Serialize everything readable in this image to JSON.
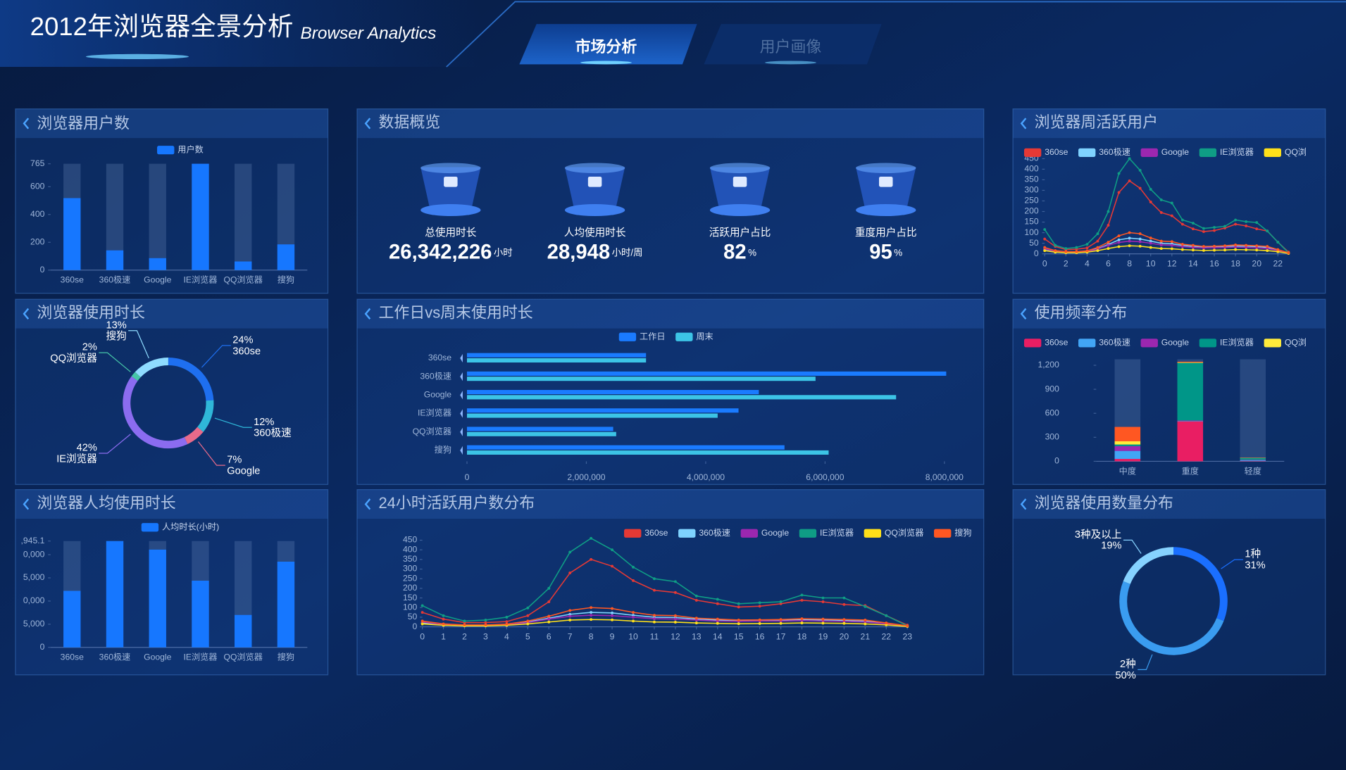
{
  "header": {
    "title": "2012年浏览器全景分析",
    "subtitle": "Browser Analytics"
  },
  "tabs": [
    "市场分析",
    "用户画像"
  ],
  "overview": {
    "title": "数据概览",
    "items": [
      {
        "label": "总使用时长",
        "value": "26,342,226",
        "unit": "小时"
      },
      {
        "label": "人均使用时长",
        "value": "28,948",
        "unit": "小时/周"
      },
      {
        "label": "活跃用户占比",
        "value": "82",
        "unit": "%"
      },
      {
        "label": "重度用户占比",
        "value": "95",
        "unit": "%"
      }
    ]
  },
  "chart_data": [
    {
      "type": "bar",
      "title": "浏览器用户数",
      "categories": [
        "360se",
        "360极速",
        "Google",
        "IE浏览器",
        "QQ浏览器",
        "搜狗"
      ],
      "series": [
        {
          "name": "用户数",
          "color": "#1677ff",
          "values": [
            518,
            142,
            86,
            765,
            62,
            185
          ]
        }
      ],
      "ylim": [
        0,
        765
      ],
      "yticks": [
        0,
        200,
        400,
        600,
        765
      ]
    },
    {
      "type": "pie",
      "title": "浏览器使用时长",
      "categories": [
        "360se",
        "360极速",
        "Google",
        "IE浏览器",
        "QQ浏览器",
        "搜狗"
      ],
      "values": [
        24,
        12,
        7,
        42,
        2,
        13
      ],
      "value_labels": [
        "24%",
        "12%",
        "7%",
        "42%",
        "2%",
        "13%"
      ],
      "colors": [
        "#1e6ff0",
        "#2fb7d8",
        "#e86a8a",
        "#8b6cf0",
        "#46c7a8",
        "#8fdcff"
      ]
    },
    {
      "type": "bar",
      "title": "浏览器人均使用时长",
      "categories": [
        "360se",
        "360极速",
        "Google",
        "IE浏览器",
        "QQ浏览器",
        "搜狗"
      ],
      "series": [
        {
          "name": "人均时长(小时)",
          "color": "#1677ff",
          "values": [
            12200,
            22945.1,
            21100,
            14400,
            7000,
            18500
          ]
        }
      ],
      "ylim": [
        0,
        22945.1
      ],
      "yticks": [
        0,
        {
          "value": 5000,
          "label": "5,000"
        },
        {
          "value": 10000,
          "label": "0,000"
        },
        {
          "value": 15000,
          "label": "5,000"
        },
        {
          "value": 20000,
          "label": "0,000"
        },
        {
          "value": 22945.1,
          "label": ",945.1"
        }
      ]
    },
    {
      "type": "barh",
      "title": "工作日vs周末使用时长",
      "categories": [
        "360se",
        "360极速",
        "Google",
        "IE浏览器",
        "QQ浏览器",
        "搜狗"
      ],
      "series": [
        {
          "name": "工作日",
          "color": "#1a7bff",
          "values": [
            3000000,
            8030000,
            4890000,
            4550000,
            2450000,
            5320000
          ]
        },
        {
          "name": "周末",
          "color": "#3cc4e6",
          "values": [
            3000000,
            5840000,
            7190000,
            4200000,
            2500000,
            6060000
          ]
        }
      ],
      "xlim": [
        0,
        8400000
      ],
      "xticks": [
        0,
        {
          "value": 2000000,
          "label": "2,000,000"
        },
        {
          "value": 4000000,
          "label": "4,000,000"
        },
        {
          "value": 6000000,
          "label": "6,000,000"
        },
        {
          "value": 8000000,
          "label": "8,000,000"
        }
      ]
    },
    {
      "type": "line",
      "title": "24小时活跃用户数分布",
      "x": [
        0,
        1,
        2,
        3,
        4,
        5,
        6,
        7,
        8,
        9,
        10,
        11,
        12,
        13,
        14,
        15,
        16,
        17,
        18,
        19,
        20,
        21,
        22,
        23
      ],
      "series": [
        {
          "name": "360se",
          "color": "#e53935",
          "values": [
            75,
            40,
            22,
            22,
            27,
            58,
            130,
            280,
            350,
            315,
            240,
            190,
            178,
            138,
            120,
            103,
            107,
            120,
            138,
            130,
            116,
            110,
            58,
            9
          ]
        },
        {
          "name": "360极速",
          "color": "#7fd3ff",
          "values": [
            20,
            10,
            8,
            8,
            12,
            25,
            45,
            65,
            75,
            72,
            60,
            50,
            48,
            40,
            35,
            32,
            34,
            35,
            38,
            36,
            34,
            30,
            18,
            4
          ]
        },
        {
          "name": "Google",
          "color": "#9c27b0",
          "values": [
            25,
            12,
            8,
            8,
            10,
            22,
            40,
            55,
            60,
            58,
            50,
            42,
            40,
            35,
            30,
            28,
            30,
            30,
            32,
            30,
            28,
            25,
            15,
            3
          ]
        },
        {
          "name": "IE浏览器",
          "color": "#0f9d85",
          "values": [
            110,
            58,
            30,
            35,
            50,
            98,
            200,
            388,
            460,
            400,
            310,
            250,
            235,
            160,
            143,
            120,
            125,
            130,
            165,
            150,
            150,
            105,
            58,
            5
          ]
        },
        {
          "name": "QQ浏览器",
          "color": "#ffe019",
          "values": [
            15,
            8,
            5,
            5,
            8,
            15,
            25,
            35,
            38,
            36,
            30,
            25,
            24,
            20,
            18,
            16,
            17,
            18,
            20,
            19,
            18,
            15,
            10,
            2
          ]
        },
        {
          "name": "搜狗",
          "color": "#ff5722",
          "values": [
            30,
            15,
            10,
            10,
            14,
            30,
            55,
            85,
            100,
            95,
            75,
            60,
            58,
            45,
            40,
            35,
            36,
            38,
            42,
            40,
            38,
            35,
            20,
            5
          ]
        }
      ],
      "xlim": [
        0,
        23
      ],
      "xticks": [
        0,
        1,
        2,
        3,
        4,
        5,
        6,
        7,
        8,
        9,
        10,
        11,
        12,
        13,
        14,
        15,
        16,
        17,
        18,
        19,
        20,
        21,
        22,
        23
      ],
      "ylim": [
        0,
        450
      ],
      "yticks": [
        0,
        50,
        100,
        150,
        200,
        250,
        300,
        350,
        400,
        450
      ]
    },
    {
      "type": "line",
      "title": "浏览器周活跃用户",
      "x": [
        0,
        1,
        2,
        3,
        4,
        5,
        6,
        7,
        8,
        9,
        10,
        11,
        12,
        13,
        14,
        15,
        16,
        17,
        18,
        19,
        20,
        21,
        22,
        23
      ],
      "series": [
        {
          "name": "360se",
          "color": "#e53935",
          "values": [
            70,
            35,
            20,
            22,
            28,
            60,
            135,
            290,
            345,
            310,
            245,
            195,
            180,
            140,
            118,
            105,
            110,
            122,
            140,
            132,
            118,
            108,
            55,
            8
          ]
        },
        {
          "name": "360极速",
          "color": "#7fd3ff",
          "values": [
            22,
            10,
            8,
            8,
            12,
            24,
            44,
            66,
            74,
            70,
            60,
            50,
            47,
            40,
            35,
            32,
            33,
            35,
            37,
            36,
            34,
            30,
            18,
            4
          ]
        },
        {
          "name": "Google",
          "color": "#9c27b0",
          "values": [
            24,
            12,
            8,
            8,
            10,
            22,
            40,
            54,
            60,
            57,
            50,
            42,
            40,
            34,
            30,
            28,
            29,
            30,
            32,
            30,
            28,
            25,
            15,
            3
          ]
        },
        {
          "name": "IE浏览器",
          "color": "#0f9d85",
          "values": [
            115,
            40,
            25,
            30,
            45,
            95,
            200,
            380,
            450,
            395,
            305,
            255,
            240,
            160,
            145,
            120,
            125,
            130,
            160,
            152,
            148,
            108,
            55,
            5
          ]
        },
        {
          "name": "QQ浏",
          "color": "#ffe019",
          "values": [
            15,
            8,
            5,
            5,
            8,
            15,
            25,
            34,
            38,
            36,
            30,
            25,
            24,
            20,
            18,
            16,
            17,
            18,
            20,
            19,
            18,
            15,
            10,
            2
          ]
        },
        {
          "color": "#ff5722",
          "values": [
            30,
            15,
            10,
            10,
            14,
            30,
            55,
            85,
            100,
            95,
            75,
            60,
            58,
            45,
            40,
            35,
            36,
            38,
            42,
            40,
            38,
            35,
            20,
            5
          ]
        }
      ],
      "xlim": [
        0,
        23
      ],
      "xticks": [
        0,
        2,
        4,
        6,
        8,
        10,
        12,
        14,
        16,
        18,
        20,
        22
      ],
      "ylim": [
        0,
        450
      ],
      "yticks": [
        0,
        50,
        100,
        150,
        200,
        250,
        300,
        350,
        400,
        450
      ]
    },
    {
      "type": "bar",
      "stacked": true,
      "title": "使用频率分布",
      "categories": [
        "中度",
        "重度",
        "轻度"
      ],
      "series": [
        {
          "name": "360se",
          "color": "#e91e63",
          "values": [
            30,
            500,
            5
          ]
        },
        {
          "name": "360极速",
          "color": "#42a5f5",
          "values": [
            100,
            5,
            10
          ]
        },
        {
          "name": "Google",
          "color": "#9c27b0",
          "values": [
            60,
            5,
            5
          ]
        },
        {
          "name": "IE浏览器",
          "color": "#009688",
          "values": [
            20,
            720,
            20
          ]
        },
        {
          "name": "QQ浏",
          "color": "#ffeb3b",
          "values": [
            40,
            5,
            3
          ]
        },
        {
          "color": "#ff5722",
          "values": [
            180,
            10,
            2
          ]
        }
      ],
      "ylim": [
        0,
        1200
      ],
      "yticks": [
        0,
        300,
        600,
        900,
        {
          "value": 1200,
          "label": "1,200"
        }
      ]
    },
    {
      "type": "pie",
      "title": "浏览器使用数量分布",
      "categories": [
        "1种",
        "2种",
        "3种及以上"
      ],
      "values": [
        31,
        50,
        19
      ],
      "value_labels": [
        "31%",
        "50%",
        "19%"
      ],
      "colors": [
        "#1a6fff",
        "#3a9cf0",
        "#86d2ff"
      ]
    }
  ]
}
